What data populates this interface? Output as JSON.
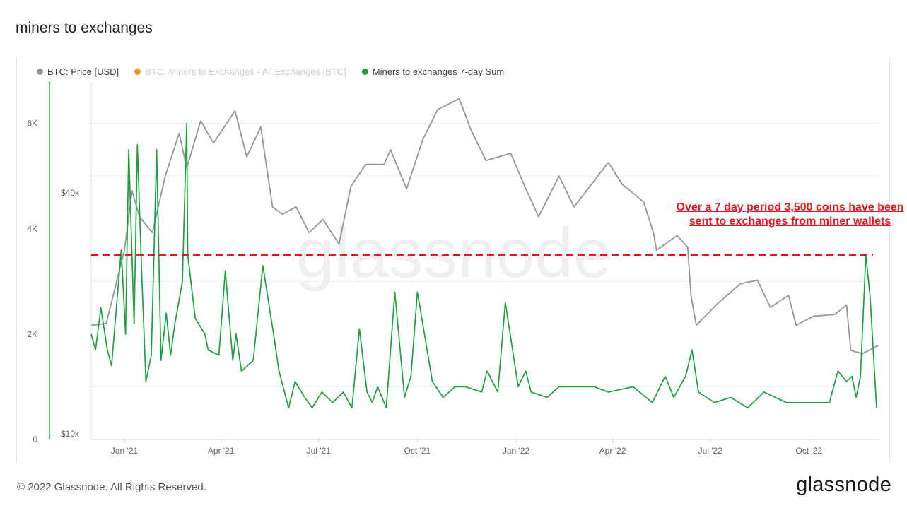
{
  "page": {
    "title": "miners to exchanges",
    "footer_copyright": "© 2022 Glassnode. All Rights Reserved.",
    "footer_logo": "glassnode",
    "watermark": "glassnode"
  },
  "annotation": {
    "text": "Over a 7 day period 3,500 coins have been sent to exchanges from miner wallets",
    "color": "#e8161b"
  },
  "chart_data": {
    "type": "line",
    "title": "miners to exchanges",
    "legend": [
      {
        "name": "BTC: Price [USD]",
        "color": "#8e979e",
        "visible": true
      },
      {
        "name": "BTC: Miners to Exchanges - All Exchanges [BTC]",
        "color": "#f7931a",
        "visible": false
      },
      {
        "name": "Miners to exchanges 7-day Sum",
        "color": "#1aa33a",
        "visible": true
      }
    ],
    "x_ticks": [
      "Jan '21",
      "Apr '21",
      "Jul '21",
      "Oct '21",
      "Jan '22",
      "Apr '22",
      "Jul '22",
      "Oct '22"
    ],
    "x_range": [
      "2020-12-01",
      "2022-12-05"
    ],
    "left_axis": {
      "label": "",
      "ticks": [
        "0",
        "2K",
        "4K",
        "6K"
      ],
      "range": [
        0,
        6800
      ]
    },
    "right_axis": {
      "scale": "log",
      "ticks": [
        "$10k",
        "$40k"
      ],
      "range": [
        10000,
        75000
      ]
    },
    "reference_line": {
      "value": 3500,
      "axis": "left",
      "style": "dashed",
      "color": "#e8161b"
    },
    "series": [
      {
        "name": "BTC: Price [USD]",
        "axis": "right",
        "color": "#8e979e",
        "x": [
          "2020-12-01",
          "2020-12-15",
          "2021-01-01",
          "2021-01-08",
          "2021-01-15",
          "2021-01-27",
          "2021-02-08",
          "2021-02-21",
          "2021-02-28",
          "2021-03-13",
          "2021-03-25",
          "2021-04-14",
          "2021-04-25",
          "2021-05-08",
          "2021-05-19",
          "2021-05-28",
          "2021-06-10",
          "2021-06-22",
          "2021-07-05",
          "2021-07-20",
          "2021-07-31",
          "2021-08-14",
          "2021-08-31",
          "2021-09-06",
          "2021-09-21",
          "2021-10-06",
          "2021-10-20",
          "2021-11-09",
          "2021-11-20",
          "2021-12-04",
          "2021-12-27",
          "2022-01-10",
          "2022-01-22",
          "2022-02-10",
          "2022-02-24",
          "2022-03-28",
          "2022-04-10",
          "2022-04-30",
          "2022-05-09",
          "2022-05-12",
          "2022-05-31",
          "2022-06-10",
          "2022-06-13",
          "2022-06-18",
          "2022-07-08",
          "2022-07-29",
          "2022-08-14",
          "2022-08-26",
          "2022-09-12",
          "2022-09-19",
          "2022-10-05",
          "2022-10-25",
          "2022-11-05",
          "2022-11-09",
          "2022-11-20",
          "2022-12-05"
        ],
        "y": [
          19000,
          19200,
          29000,
          40500,
          35000,
          32000,
          44000,
          56000,
          46000,
          60000,
          53000,
          63500,
          49000,
          58000,
          37000,
          35500,
          37000,
          32000,
          34500,
          30000,
          41500,
          47000,
          47000,
          51000,
          41000,
          54000,
          64000,
          68000,
          57000,
          48000,
          50000,
          41000,
          35000,
          44000,
          37000,
          47500,
          42000,
          38000,
          32000,
          29000,
          31500,
          29500,
          22500,
          19000,
          21500,
          24000,
          24500,
          21000,
          22500,
          19000,
          20000,
          20200,
          21300,
          16500,
          16200,
          17000
        ]
      },
      {
        "name": "Miners to exchanges 7-day Sum",
        "axis": "left",
        "color": "#1aa33a",
        "x": [
          "2020-12-01",
          "2020-12-05",
          "2020-12-10",
          "2020-12-16",
          "2020-12-20",
          "2020-12-29",
          "2021-01-02",
          "2021-01-05",
          "2021-01-10",
          "2021-01-13",
          "2021-01-17",
          "2021-01-21",
          "2021-01-26",
          "2021-01-31",
          "2021-02-04",
          "2021-02-09",
          "2021-02-13",
          "2021-02-17",
          "2021-02-24",
          "2021-02-28",
          "2021-03-01",
          "2021-03-08",
          "2021-03-17",
          "2021-03-20",
          "2021-03-30",
          "2021-04-05",
          "2021-04-12",
          "2021-04-15",
          "2021-04-20",
          "2021-05-01",
          "2021-05-10",
          "2021-05-20",
          "2021-05-25",
          "2021-06-03",
          "2021-06-09",
          "2021-06-18",
          "2021-06-25",
          "2021-07-04",
          "2021-07-14",
          "2021-07-24",
          "2021-08-01",
          "2021-08-08",
          "2021-08-15",
          "2021-08-20",
          "2021-08-25",
          "2021-09-02",
          "2021-09-10",
          "2021-09-19",
          "2021-09-25",
          "2021-10-01",
          "2021-10-15",
          "2021-10-25",
          "2021-11-05",
          "2021-11-15",
          "2021-11-30",
          "2021-12-05",
          "2021-12-15",
          "2021-12-22",
          "2022-01-03",
          "2022-01-10",
          "2022-01-15",
          "2022-01-30",
          "2022-02-10",
          "2022-02-28",
          "2022-03-15",
          "2022-03-28",
          "2022-04-20",
          "2022-05-08",
          "2022-05-20",
          "2022-05-28",
          "2022-06-08",
          "2022-06-14",
          "2022-06-20",
          "2022-07-05",
          "2022-07-20",
          "2022-08-05",
          "2022-08-20",
          "2022-09-10",
          "2022-09-25",
          "2022-10-05",
          "2022-10-20",
          "2022-10-28",
          "2022-11-05",
          "2022-11-10",
          "2022-11-14",
          "2022-11-18",
          "2022-11-23",
          "2022-11-27",
          "2022-12-03"
        ],
        "y": [
          2000,
          1700,
          2500,
          1700,
          1400,
          3600,
          2000,
          5500,
          2200,
          5600,
          3200,
          1100,
          1600,
          5500,
          1500,
          2400,
          1600,
          2200,
          3000,
          6000,
          3500,
          2300,
          2000,
          1700,
          1600,
          3200,
          1500,
          2000,
          1300,
          1500,
          3300,
          2000,
          1300,
          600,
          1100,
          800,
          600,
          900,
          700,
          900,
          600,
          2100,
          900,
          700,
          1000,
          600,
          2800,
          800,
          1200,
          2800,
          1100,
          800,
          1000,
          1000,
          900,
          1300,
          900,
          2600,
          1000,
          1300,
          900,
          800,
          1000,
          1000,
          1000,
          900,
          1000,
          700,
          1200,
          800,
          1200,
          1700,
          900,
          700,
          800,
          600,
          900,
          700,
          700,
          700,
          700,
          1300,
          1100,
          1200,
          800,
          1200,
          3500,
          2700,
          600
        ]
      }
    ]
  }
}
